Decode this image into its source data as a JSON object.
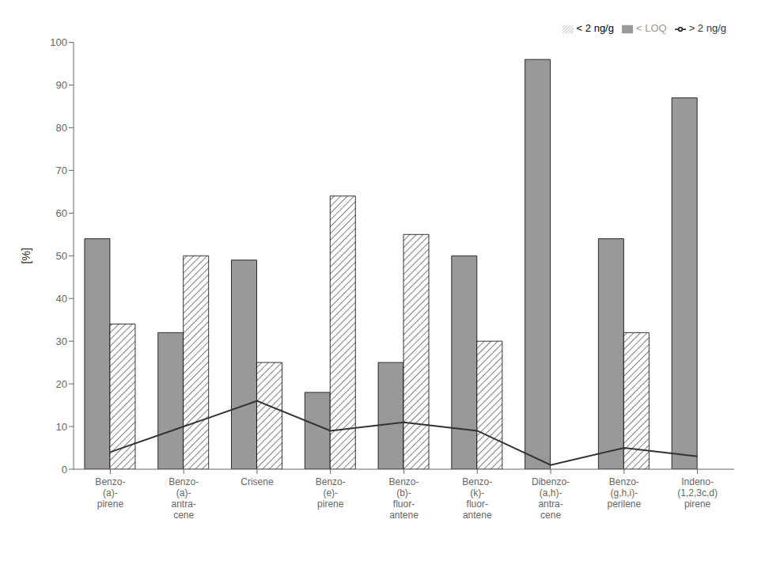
{
  "chart_data": {
    "type": "bar",
    "categories": [
      "Benzo-\n(a)-\npirene",
      "Benzo-\n(a)-\nantra-\ncene",
      "Crisene",
      "Benzo-\n(e)-\npirene",
      "Benzo-\n(b)-\nfluor-\nantene",
      "Benzo-\n(k)-\nfluor-\nantene",
      "Dibenzo-\n(a,h)-\nantra-\ncene",
      "Benzo-\n(g,h,i)-\nperilene",
      "Indeno-\n(1,2,3c,d)\npirene"
    ],
    "series": [
      {
        "name": "< LOQ",
        "type": "bar",
        "color": "#999999",
        "values": [
          54,
          32,
          49,
          18,
          25,
          50,
          96,
          54,
          87
        ]
      },
      {
        "name": "< 2 ng/g",
        "type": "bar",
        "color": "#ffffff",
        "values": [
          34,
          50,
          25,
          64,
          55,
          30,
          0,
          32,
          0
        ]
      },
      {
        "name": "> 2 ng/g",
        "type": "line",
        "color": "#333333",
        "values": [
          4,
          10,
          16,
          9,
          11,
          9,
          1,
          5,
          3
        ]
      }
    ],
    "ylabel": "[%]",
    "ylim": [
      0,
      100
    ],
    "yticks": [
      0,
      10,
      20,
      30,
      40,
      50,
      60,
      70,
      80,
      90,
      100
    ],
    "grid": false,
    "legend": "upper right"
  }
}
